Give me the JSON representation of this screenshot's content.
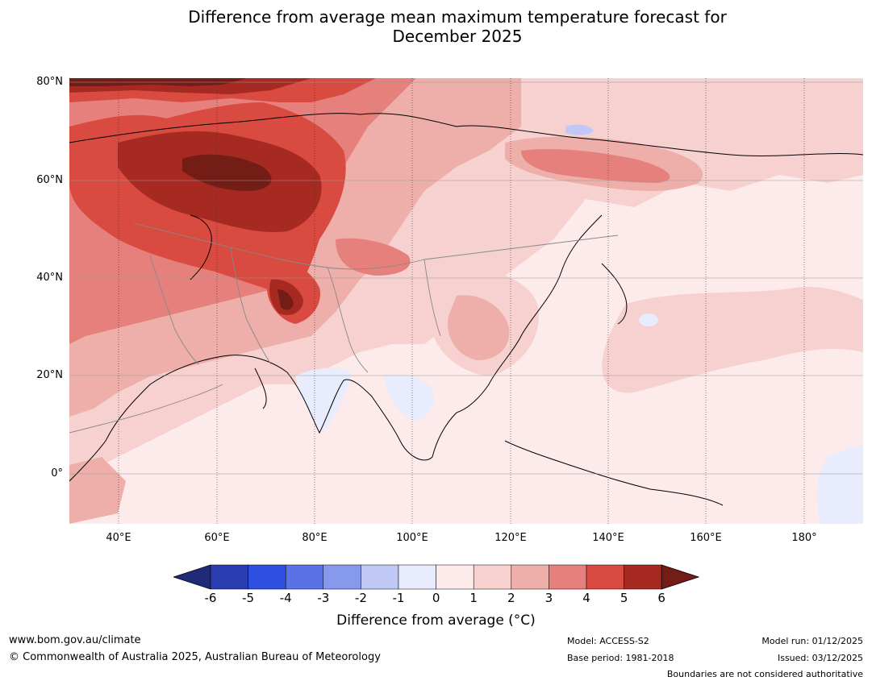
{
  "title": {
    "line1": "Difference from average mean maximum temperature forecast for",
    "line2": "December 2025"
  },
  "map": {
    "lat_labels": [
      "80°N",
      "60°N",
      "40°N",
      "20°N",
      "0°"
    ],
    "lon_labels": [
      "40°E",
      "60°E",
      "80°E",
      "100°E",
      "120°E",
      "140°E",
      "160°E",
      "180°"
    ]
  },
  "colorbar": {
    "ticks": [
      "-6",
      "-5",
      "-4",
      "-3",
      "-2",
      "-1",
      "0",
      "1",
      "2",
      "3",
      "4",
      "5",
      "6"
    ],
    "colors": [
      "#1f2a78",
      "#2a3db0",
      "#2f4fe0",
      "#5a72e6",
      "#8799ec",
      "#c0c8f5",
      "#e8ecfc",
      "#fdeaea",
      "#f6d1cf",
      "#eeaeaa",
      "#e6807c",
      "#d94a41",
      "#a72a22",
      "#741c16"
    ],
    "label": "Difference from average (°C)"
  },
  "footer": {
    "website": "www.bom.gov.au/climate",
    "copyright": "© Commonwealth of Australia 2025, Australian Bureau of Meteorology",
    "model": "Model: ACCESS-S2",
    "base_period": "Base period: 1981-2018",
    "model_run": "Model run: 01/12/2025",
    "issued": "Issued: 03/12/2025",
    "boundaries_note": "Boundaries are not considered authoritative"
  }
}
